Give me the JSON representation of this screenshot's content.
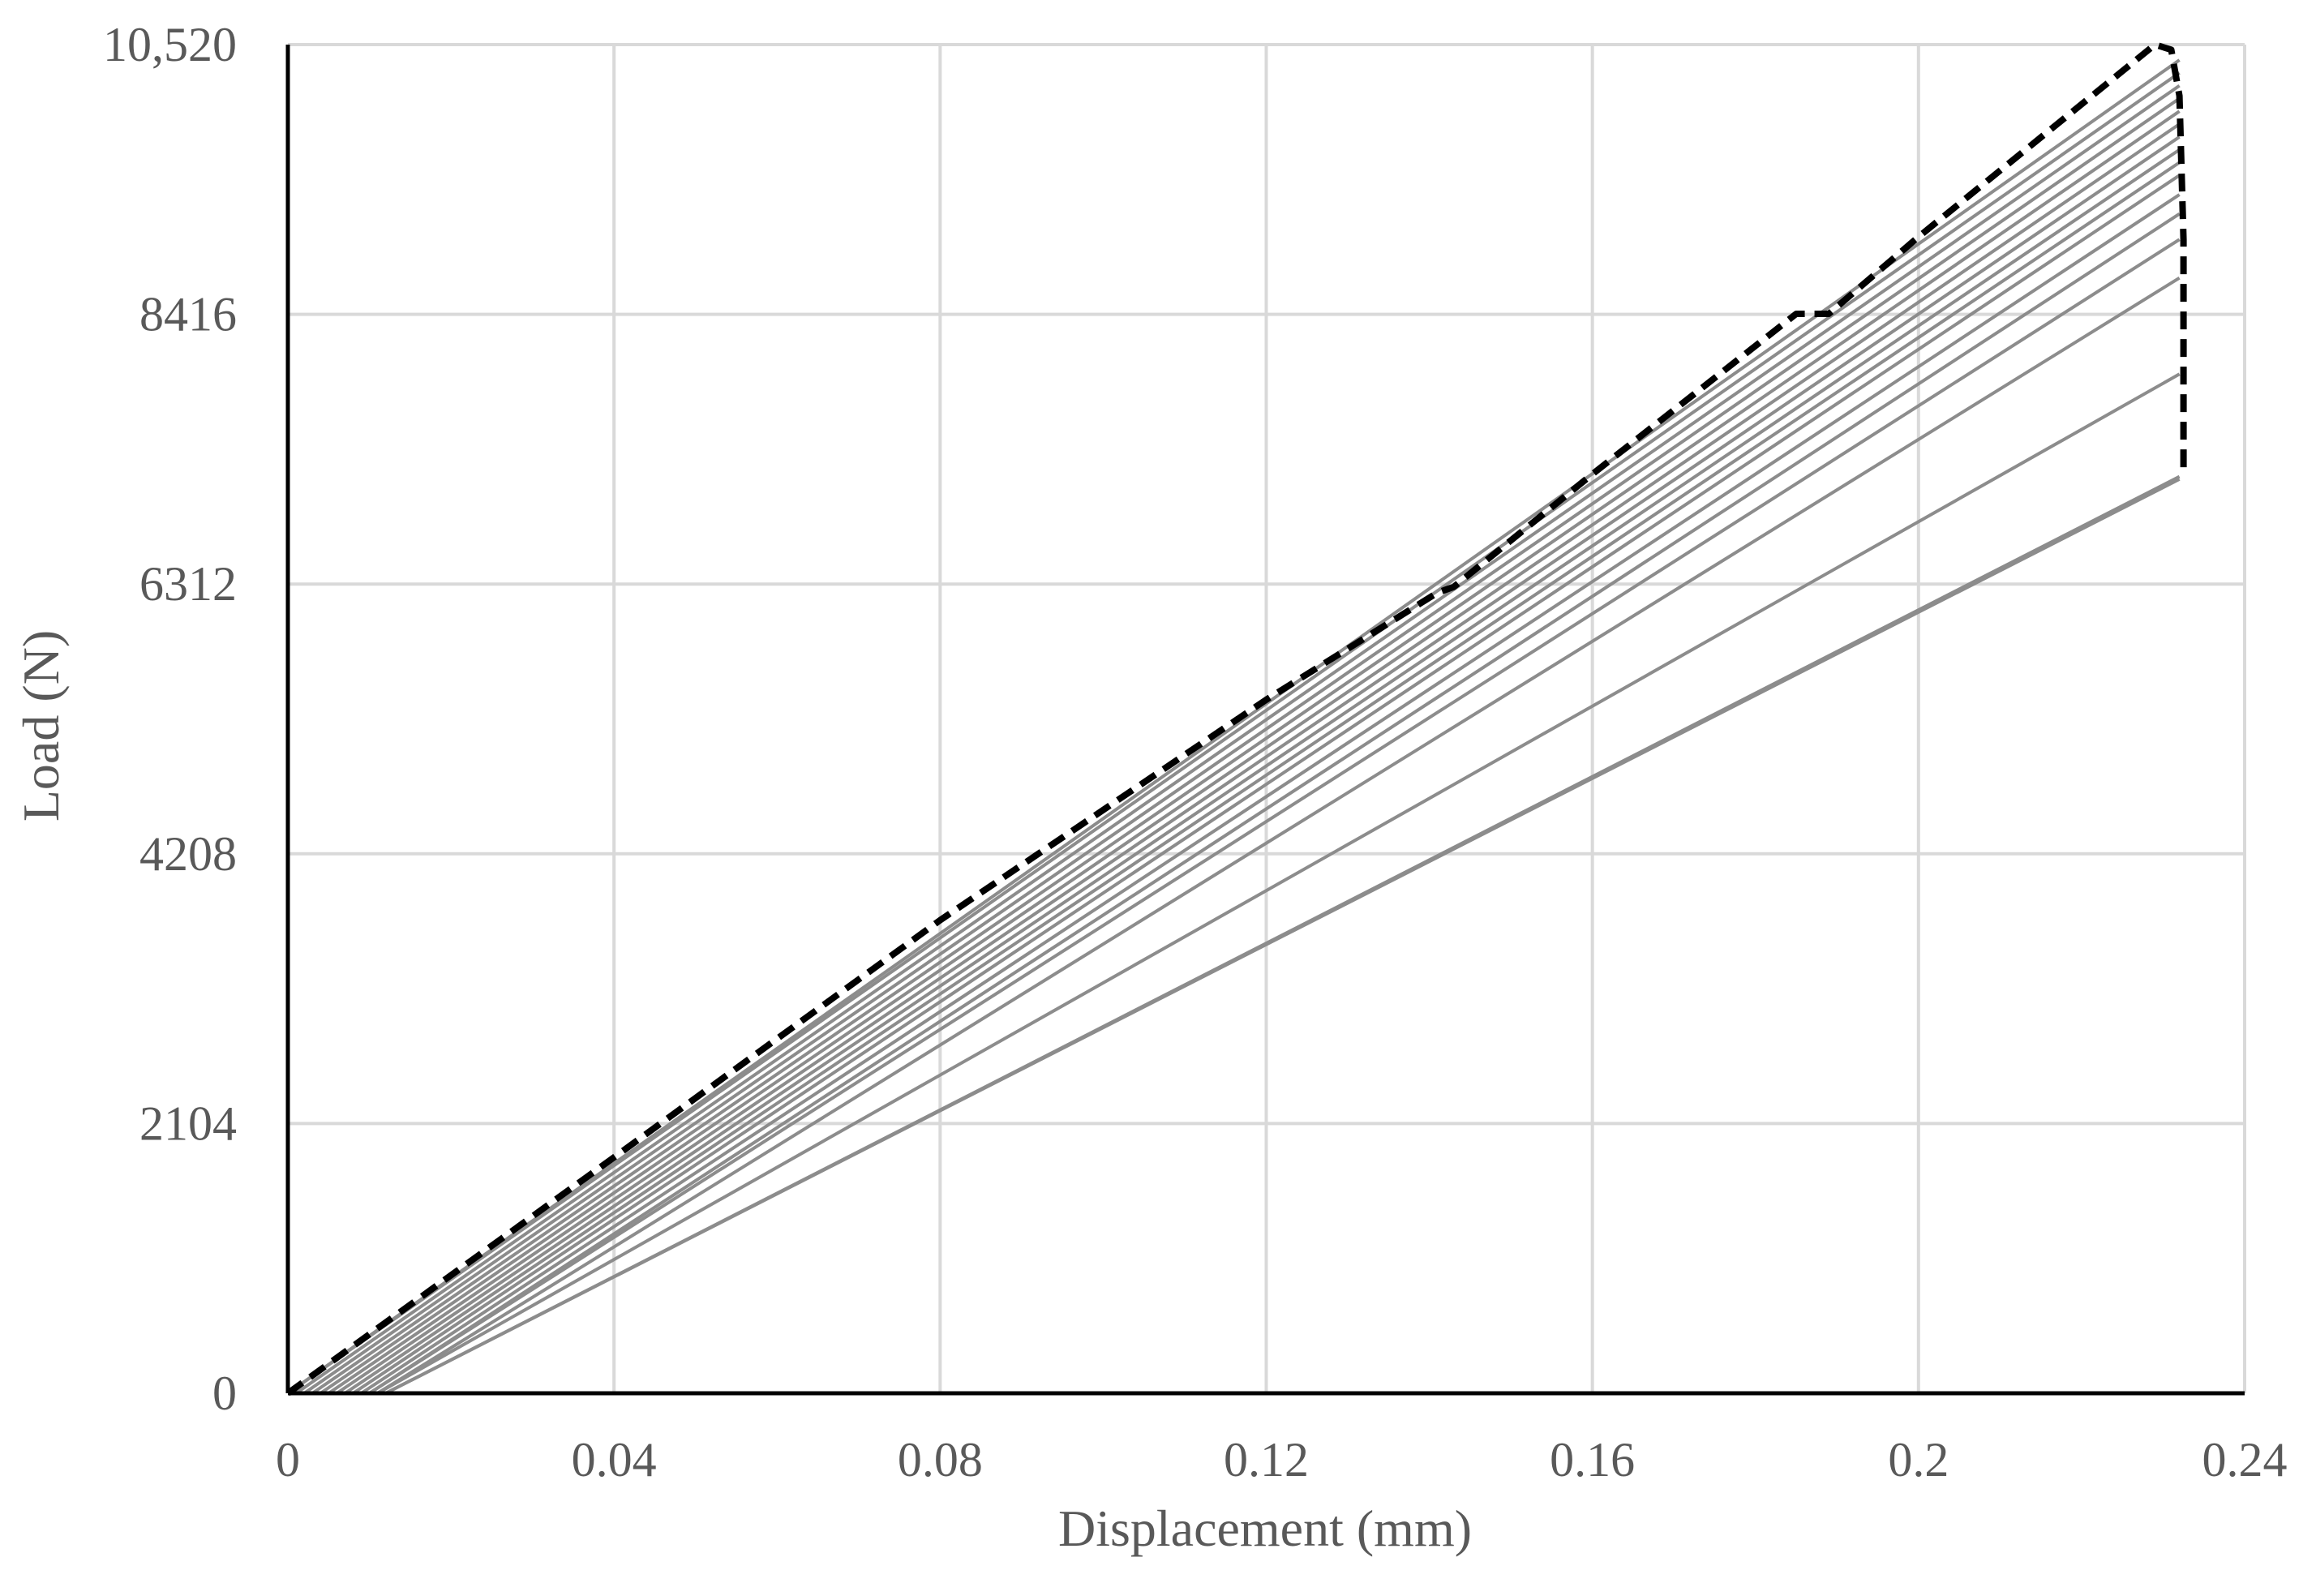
{
  "chart_data": {
    "type": "line",
    "title": "",
    "xlabel": "Displacement (mm)",
    "ylabel": "Load (N)",
    "xlim": [
      0,
      0.24
    ],
    "ylim": [
      0,
      10520
    ],
    "x_ticks": [
      0,
      0.04,
      0.08,
      0.12,
      0.16,
      0.2,
      0.24
    ],
    "x_tick_labels": [
      "0",
      "0.04",
      "0.08",
      "0.12",
      "0.16",
      "0.2",
      "0.24"
    ],
    "y_ticks": [
      0,
      2104,
      4208,
      6312,
      8416,
      10520
    ],
    "y_tick_labels": [
      "0",
      "2104",
      "4208",
      "6312",
      "8416",
      "10,520"
    ],
    "grid": true,
    "legend": "none",
    "colors": {
      "series": "#8c8c8c",
      "envelope": "#000000",
      "grid": "#d9d9d9",
      "axis": "#000000",
      "text": "#595959"
    },
    "series": [
      {
        "style": "solid",
        "x": [
          0.0,
          0.232
        ],
        "y": [
          0,
          10400
        ]
      },
      {
        "style": "solid",
        "x": [
          0.0,
          0.232
        ],
        "y": [
          0,
          10300
        ]
      },
      {
        "style": "solid",
        "x": [
          0.001,
          0.232
        ],
        "y": [
          0,
          10200
        ]
      },
      {
        "style": "solid",
        "x": [
          0.002,
          0.232
        ],
        "y": [
          0,
          10100
        ]
      },
      {
        "style": "solid",
        "x": [
          0.003,
          0.232
        ],
        "y": [
          0,
          10000
        ]
      },
      {
        "style": "solid",
        "x": [
          0.004,
          0.232
        ],
        "y": [
          0,
          9900
        ]
      },
      {
        "style": "solid",
        "x": [
          0.005,
          0.232
        ],
        "y": [
          0,
          9800
        ]
      },
      {
        "style": "solid",
        "x": [
          0.006,
          0.232
        ],
        "y": [
          0,
          9700
        ]
      },
      {
        "style": "solid",
        "x": [
          0.007,
          0.232
        ],
        "y": [
          0,
          9600
        ]
      },
      {
        "style": "solid",
        "x": [
          0.008,
          0.232
        ],
        "y": [
          0,
          9500
        ]
      },
      {
        "style": "solid",
        "x": [
          0.009,
          0.232
        ],
        "y": [
          0,
          9350
        ]
      },
      {
        "style": "solid",
        "x": [
          0.01,
          0.232
        ],
        "y": [
          0,
          9200
        ]
      },
      {
        "style": "solid",
        "x": [
          0.01,
          0.232
        ],
        "y": [
          0,
          9000
        ]
      },
      {
        "style": "solid",
        "x": [
          0.011,
          0.232
        ],
        "y": [
          0,
          8700
        ]
      },
      {
        "style": "solid",
        "x": [
          0.011,
          0.232
        ],
        "y": [
          0,
          7950
        ]
      },
      {
        "style": "solid",
        "x": [
          0.012,
          0.232
        ],
        "y": [
          0,
          7150
        ]
      },
      {
        "style": "solid",
        "x": [
          0.012,
          0.232
        ],
        "y": [
          0,
          7130
        ]
      },
      {
        "style": "dashed",
        "x": [
          0.0,
          0.04,
          0.08,
          0.12,
          0.141,
          0.143,
          0.16,
          0.185,
          0.189,
          0.2,
          0.229,
          0.231,
          0.232,
          0.2325,
          0.2325
        ],
        "y": [
          0,
          1840,
          3690,
          5410,
          6245,
          6290,
          7170,
          8420,
          8420,
          9020,
          10520,
          10480,
          10120,
          9000,
          7200
        ]
      }
    ]
  }
}
